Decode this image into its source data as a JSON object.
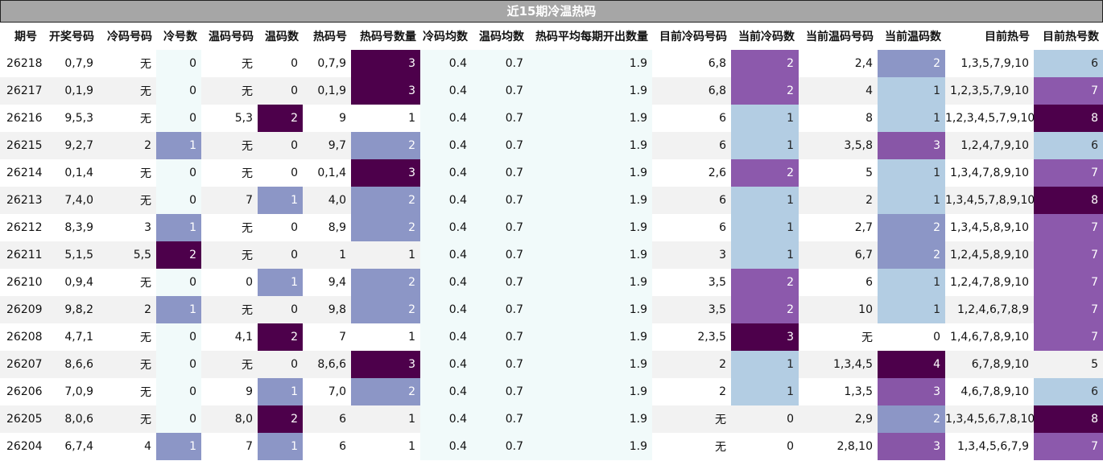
{
  "title": "近15期冷温热码",
  "headers": [
    "期号",
    "开奖号码",
    "冷码号码",
    "冷号数",
    "温码号码",
    "温码数",
    "热码号",
    "热码号数量",
    "冷码均数",
    "温码均数",
    "热码平均每期开出数量",
    "目前冷码号码",
    "当前冷码数",
    "当前温码号码",
    "当前温码数",
    "目前热号",
    "目前热号数"
  ],
  "rows": [
    [
      "26218",
      "0,7,9",
      "无",
      "0",
      "无",
      "0",
      "0,7,9",
      "3",
      "0.4",
      "0.7",
      "1.9",
      "6,8",
      "2",
      "2,4",
      "2",
      "1,3,5,7,9,10",
      "6"
    ],
    [
      "26217",
      "0,1,9",
      "无",
      "0",
      "无",
      "0",
      "0,1,9",
      "3",
      "0.4",
      "0.7",
      "1.9",
      "6,8",
      "2",
      "4",
      "1",
      "1,2,3,5,7,9,10",
      "7"
    ],
    [
      "26216",
      "9,5,3",
      "无",
      "0",
      "5,3",
      "2",
      "9",
      "1",
      "0.4",
      "0.7",
      "1.9",
      "6",
      "1",
      "8",
      "1",
      "1,2,3,4,5,7,9,10",
      "8"
    ],
    [
      "26215",
      "9,2,7",
      "2",
      "1",
      "无",
      "0",
      "9,7",
      "2",
      "0.4",
      "0.7",
      "1.9",
      "6",
      "1",
      "3,5,8",
      "3",
      "1,2,4,7,9,10",
      "6"
    ],
    [
      "26214",
      "0,1,4",
      "无",
      "0",
      "无",
      "0",
      "0,1,4",
      "3",
      "0.4",
      "0.7",
      "1.9",
      "2,6",
      "2",
      "5",
      "1",
      "1,3,4,7,8,9,10",
      "7"
    ],
    [
      "26213",
      "7,4,0",
      "无",
      "0",
      "7",
      "1",
      "4,0",
      "2",
      "0.4",
      "0.7",
      "1.9",
      "6",
      "1",
      "2",
      "1",
      "1,3,4,5,7,8,9,10",
      "8"
    ],
    [
      "26212",
      "8,3,9",
      "3",
      "1",
      "无",
      "0",
      "8,9",
      "2",
      "0.4",
      "0.7",
      "1.9",
      "6",
      "1",
      "2,7",
      "2",
      "1,3,4,5,8,9,10",
      "7"
    ],
    [
      "26211",
      "5,1,5",
      "5,5",
      "2",
      "无",
      "0",
      "1",
      "1",
      "0.4",
      "0.7",
      "1.9",
      "3",
      "1",
      "6,7",
      "2",
      "1,2,4,5,8,9,10",
      "7"
    ],
    [
      "26210",
      "0,9,4",
      "无",
      "0",
      "0",
      "1",
      "9,4",
      "2",
      "0.4",
      "0.7",
      "1.9",
      "3,5",
      "2",
      "6",
      "1",
      "1,2,4,7,8,9,10",
      "7"
    ],
    [
      "26209",
      "9,8,2",
      "2",
      "1",
      "无",
      "0",
      "9,8",
      "2",
      "0.4",
      "0.7",
      "1.9",
      "3,5",
      "2",
      "10",
      "1",
      "1,2,4,6,7,8,9",
      "7"
    ],
    [
      "26208",
      "4,7,1",
      "无",
      "0",
      "4,1",
      "2",
      "7",
      "1",
      "0.4",
      "0.7",
      "1.9",
      "2,3,5",
      "3",
      "无",
      "0",
      "1,4,6,7,8,9,10",
      "7"
    ],
    [
      "26207",
      "8,6,6",
      "无",
      "0",
      "无",
      "0",
      "8,6,6",
      "3",
      "0.4",
      "0.7",
      "1.9",
      "2",
      "1",
      "1,3,4,5",
      "4",
      "6,7,8,9,10",
      "5"
    ],
    [
      "26206",
      "7,0,9",
      "无",
      "0",
      "9",
      "1",
      "7,0",
      "2",
      "0.4",
      "0.7",
      "1.9",
      "2",
      "1",
      "1,3,5",
      "3",
      "4,6,7,8,9,10",
      "6"
    ],
    [
      "26205",
      "8,0,6",
      "无",
      "0",
      "8,0",
      "2",
      "6",
      "1",
      "0.4",
      "0.7",
      "1.9",
      "无",
      "0",
      "2,9",
      "2",
      "1,3,4,5,6,7,8,10",
      "8"
    ],
    [
      "26204",
      "6,7,4",
      "4",
      "1",
      "7",
      "1",
      "6",
      "1",
      "0.4",
      "0.7",
      "1.9",
      "无",
      "0",
      "2,8,10",
      "3",
      "1,3,4,5,6,7,9",
      "7"
    ]
  ],
  "colors": {
    "header_bg": "#a6a6a6",
    "level_light_blue": "#b3cde3",
    "level_slate": "#8c96c6",
    "level_violet": "#8856a7",
    "level_purple": "#810f7c",
    "level_dark": "#4d004b"
  }
}
